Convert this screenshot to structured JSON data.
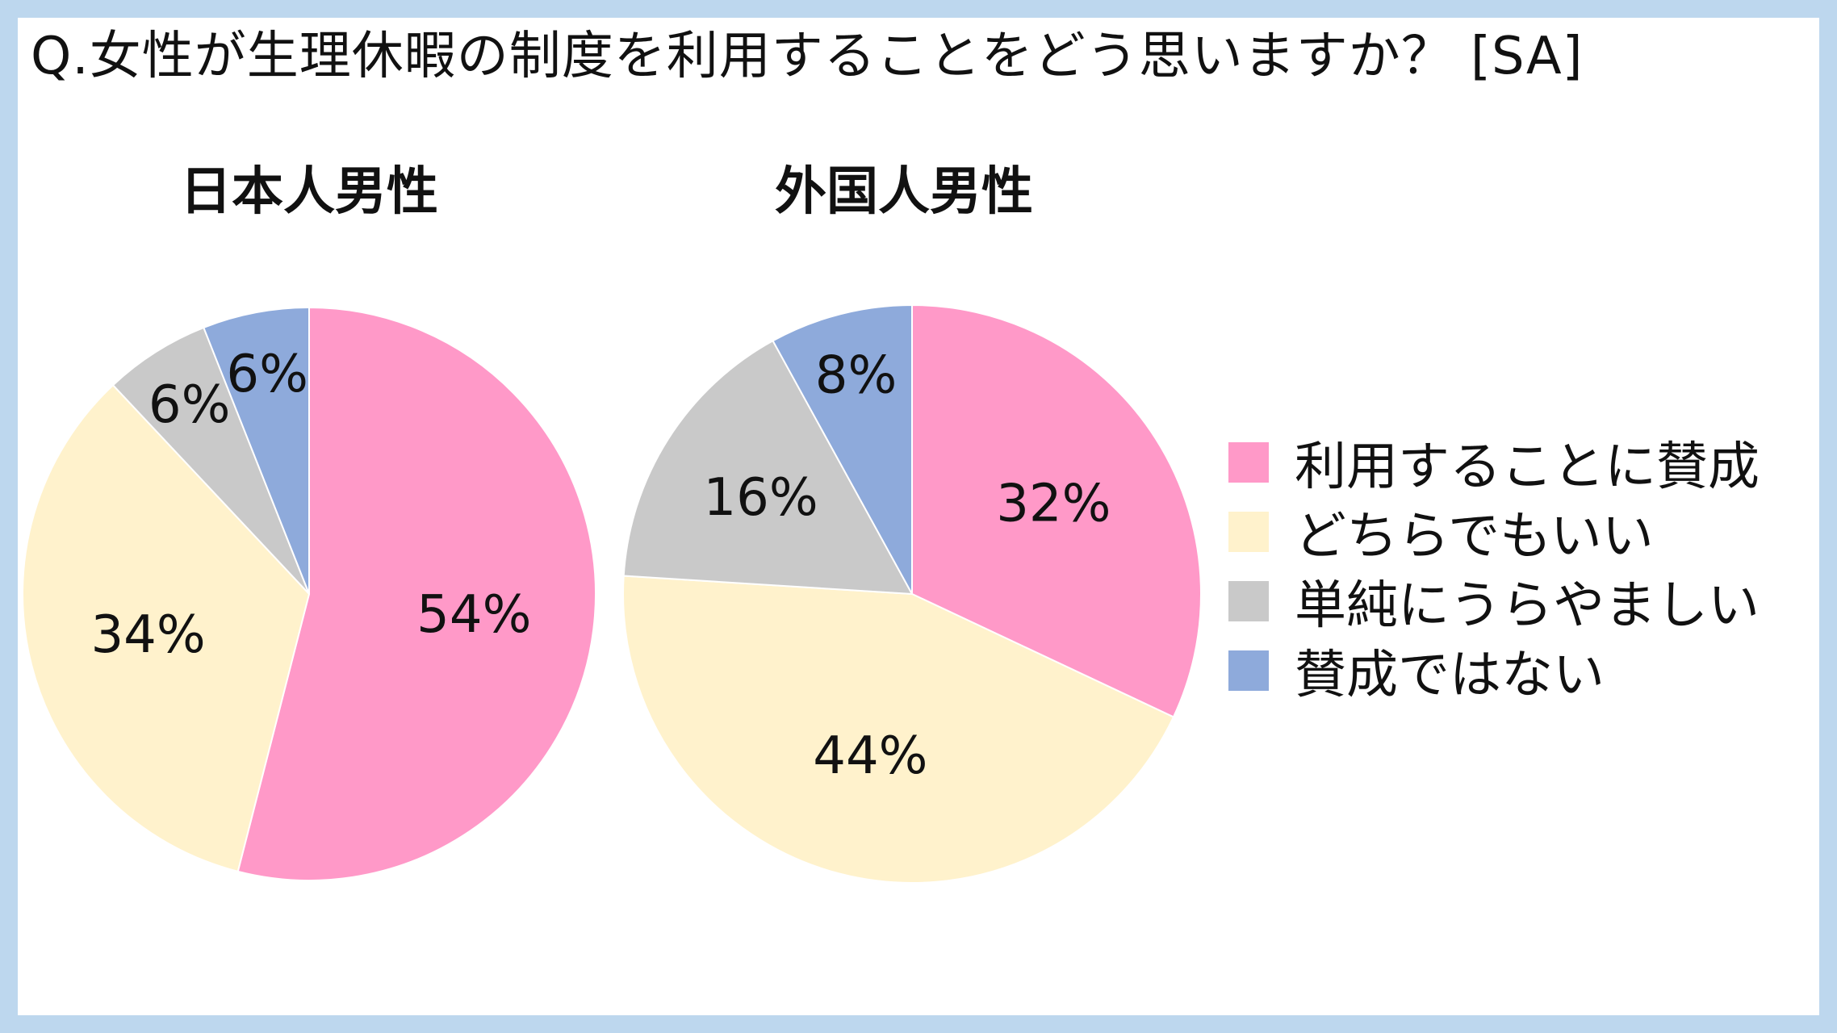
{
  "title": "Q.女性が生理休暇の制度を利用することをどう思いますか？ [SA]",
  "colors": {
    "frame": "#bdd7ee",
    "categories": [
      "#ff99c8",
      "#fff2cc",
      "#c9c9c9",
      "#8eaadb"
    ]
  },
  "chart_data": [
    {
      "type": "pie",
      "title": "日本人男性",
      "categories": [
        "利用することに賛成",
        "どちらでもいい",
        "単純にうらやましい",
        "賛成ではない"
      ],
      "values": [
        54,
        34,
        6,
        6
      ],
      "labels": [
        "54%",
        "34%",
        "6%",
        "6%"
      ],
      "start_angle_deg": 0,
      "direction": "clockwise"
    },
    {
      "type": "pie",
      "title": "外国人男性",
      "categories": [
        "利用することに賛成",
        "どちらでもいい",
        "単純にうらやましい",
        "賛成ではない"
      ],
      "values": [
        32,
        44,
        16,
        8
      ],
      "labels": [
        "32%",
        "44%",
        "16%",
        "8%"
      ],
      "start_angle_deg": 0,
      "direction": "clockwise"
    }
  ],
  "legend": {
    "position": "right",
    "items": [
      {
        "label": "利用することに賛成"
      },
      {
        "label": "どちらでもいい"
      },
      {
        "label": "単純にうらやましい"
      },
      {
        "label": "賛成ではない"
      }
    ]
  }
}
